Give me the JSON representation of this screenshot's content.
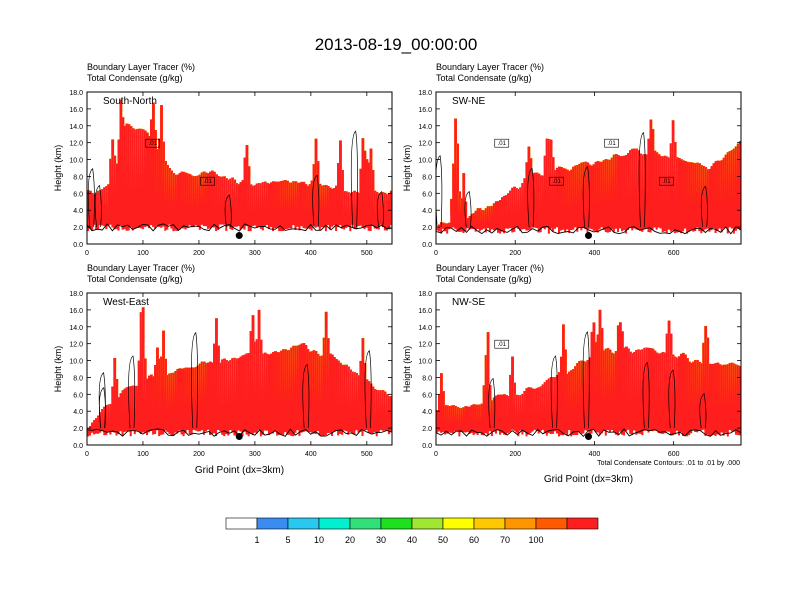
{
  "figure_title": "2013-08-19_00:00:00",
  "footnote": "Total Condensate Contours: .01 to .01 by .000",
  "colorbar": {
    "levels": [
      "1",
      "5",
      "10",
      "20",
      "30",
      "40",
      "50",
      "60",
      "70",
      "100"
    ],
    "colors": [
      "#ffffff",
      "#3b8cf0",
      "#28c8f0",
      "#00f0d0",
      "#32e07a",
      "#1ee01e",
      "#a0e632",
      "#ffff00",
      "#ffc800",
      "#ff9600",
      "#ff5a00",
      "#ff1e1e"
    ]
  },
  "chart_data": [
    {
      "type": "heatmap",
      "panel_label": "South-North",
      "title_line1": "Boundary Layer Tracer   (%)",
      "title_line2": "Total Condensate   (g/kg)",
      "ylabel": "Height (km)",
      "xlabel": "",
      "xlim": [
        0,
        545
      ],
      "ylim": [
        0,
        18
      ],
      "xticks": [
        "0",
        "100",
        "200",
        "300",
        "400",
        "500"
      ],
      "yticks": [
        "0.0",
        "2.0",
        "4.0",
        "6.0",
        "8.0",
        "10.0",
        "12.0",
        "14.0",
        "16.0",
        "18.0"
      ],
      "marker_x": 272,
      "contour_labels": [
        ".01",
        ".01"
      ]
    },
    {
      "type": "heatmap",
      "panel_label": "SW-NE",
      "title_line1": "Boundary Layer Tracer   (%)",
      "title_line2": "Total Condensate   (g/kg)",
      "ylabel": "Height (km)",
      "xlabel": "",
      "xlim": [
        0,
        770
      ],
      "ylim": [
        0,
        18
      ],
      "xticks": [
        "0",
        "200",
        "400",
        "600"
      ],
      "yticks": [
        "0.0",
        "2.0",
        "4.0",
        "6.0",
        "8.0",
        "10.0",
        "12.0",
        "14.0",
        "16.0",
        "18.0"
      ],
      "marker_x": 385,
      "contour_labels": [
        ".01",
        ".01",
        ".01",
        ".01"
      ]
    },
    {
      "type": "heatmap",
      "panel_label": "West-East",
      "title_line1": "Boundary Layer Tracer   (%)",
      "title_line2": "Total Condensate   (g/kg)",
      "ylabel": "Height (km)",
      "xlabel": "Grid Point (dx=3km)",
      "xlim": [
        0,
        545
      ],
      "ylim": [
        0,
        18
      ],
      "xticks": [
        "0",
        "100",
        "200",
        "300",
        "400",
        "500"
      ],
      "yticks": [
        "0.0",
        "2.0",
        "4.0",
        "6.0",
        "8.0",
        "10.0",
        "12.0",
        "14.0",
        "16.0",
        "18.0"
      ],
      "marker_x": 272,
      "contour_labels": []
    },
    {
      "type": "heatmap",
      "panel_label": "NW-SE",
      "title_line1": "Boundary Layer Tracer   (%)",
      "title_line2": "Total Condensate   (g/kg)",
      "ylabel": "Height (km)",
      "xlabel": "Grid Point (dx=3km)",
      "xlim": [
        0,
        770
      ],
      "ylim": [
        0,
        18
      ],
      "xticks": [
        "0",
        "200",
        "400",
        "600"
      ],
      "yticks": [
        "0.0",
        "2.0",
        "4.0",
        "6.0",
        "8.0",
        "10.0",
        "12.0",
        "14.0",
        "16.0",
        "18.0"
      ],
      "marker_x": 385,
      "contour_labels": [
        ".01"
      ]
    }
  ]
}
